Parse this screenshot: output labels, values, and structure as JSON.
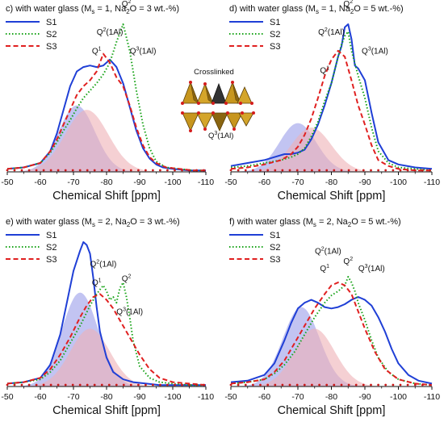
{
  "colors": {
    "S1": "#1f3fd6",
    "S2": "#17a317",
    "S3": "#e02020",
    "dot": "#cc1b1b",
    "fill_blue": "#aeb0ee",
    "fill_pink": "#efb0b6",
    "fill_overlap": "#a08a9c"
  },
  "crystal_labels": {
    "title": "Crosslinked",
    "q3": "Q3(1Al)"
  },
  "chart_data": [
    {
      "id": "c",
      "type": "line",
      "title": "c) with water glass (Ms = 1, Na2O = 3 wt.-%)",
      "title_parts": {
        "pre": "c) with water glass (M",
        "sub1": "s",
        "mid": " = 1, Na",
        "sub2": "2",
        "post": "O = 3 wt.-%)"
      },
      "xlabel": "Chemical Shift [ppm]",
      "xlim": [
        -50,
        -110
      ],
      "xticks": [
        "-50",
        "-60",
        "-70",
        "-80",
        "-90",
        "-100",
        "-110"
      ],
      "legend": [
        "S1",
        "S2",
        "S3"
      ],
      "legend_position": "top-left",
      "annotations": [
        {
          "sup": "1",
          "tail": "",
          "x": -77,
          "y": 0.8
        },
        {
          "sup": "2",
          "tail": "(1Al)",
          "x": -81,
          "y": 0.93
        },
        {
          "sup": "2",
          "tail": "",
          "x": -86,
          "y": 1.12
        },
        {
          "sup": "3",
          "tail": "(1Al)",
          "x": -91,
          "y": 0.8
        }
      ],
      "series": [
        {
          "name": "S1",
          "x": [
            -50,
            -55,
            -60,
            -63,
            -65,
            -67,
            -69,
            -71,
            -73,
            -75,
            -77,
            -79,
            -81,
            -83,
            -85,
            -87,
            -89,
            -91,
            -93,
            -95,
            -97,
            -100,
            -105,
            -110
          ],
          "y": [
            0.02,
            0.03,
            0.06,
            0.14,
            0.26,
            0.42,
            0.58,
            0.68,
            0.71,
            0.72,
            0.71,
            0.72,
            0.76,
            0.71,
            0.6,
            0.44,
            0.28,
            0.16,
            0.09,
            0.05,
            0.03,
            0.02,
            0.01,
            0.01
          ]
        },
        {
          "name": "S2",
          "x": [
            -50,
            -55,
            -60,
            -63,
            -65,
            -67,
            -69,
            -71,
            -73,
            -75,
            -77,
            -79,
            -81,
            -83,
            -85,
            -87,
            -89,
            -91,
            -93,
            -95,
            -98,
            -102,
            -106,
            -110
          ],
          "y": [
            0.02,
            0.03,
            0.06,
            0.13,
            0.2,
            0.28,
            0.35,
            0.43,
            0.5,
            0.55,
            0.6,
            0.66,
            0.74,
            0.88,
            1.0,
            0.82,
            0.55,
            0.32,
            0.16,
            0.07,
            0.03,
            0.02,
            0.01,
            0.01
          ]
        },
        {
          "name": "S3",
          "x": [
            -50,
            -55,
            -60,
            -63,
            -65,
            -67,
            -69,
            -71,
            -73,
            -75,
            -77,
            -79,
            -81,
            -83,
            -85,
            -87,
            -89,
            -91,
            -93,
            -95,
            -98,
            -102,
            -106,
            -110
          ],
          "y": [
            0.02,
            0.03,
            0.06,
            0.14,
            0.22,
            0.32,
            0.42,
            0.52,
            0.58,
            0.62,
            0.68,
            0.8,
            0.74,
            0.64,
            0.58,
            0.45,
            0.3,
            0.18,
            0.1,
            0.06,
            0.03,
            0.02,
            0.01,
            0.01
          ]
        },
        {
          "name": "fill_blue",
          "peak": -71,
          "width": 5.5,
          "height": 0.45
        },
        {
          "name": "fill_pink",
          "peak": -74,
          "width": 6.5,
          "height": 0.42
        }
      ]
    },
    {
      "id": "d",
      "type": "line",
      "title": "d) with water glass (Ms = 1, Na2O = 5 wt.-%)",
      "title_parts": {
        "pre": "d) with water glass (M",
        "sub1": "s",
        "mid": " = 1, Na",
        "sub2": "2",
        "post": "O = 5 wt.-%)"
      },
      "xlabel": "Chemical Shift [ppm]",
      "xlim": [
        -50,
        -110
      ],
      "xticks": [
        "-50",
        "-60",
        "-70",
        "-80",
        "-90",
        "-100",
        "-110"
      ],
      "legend": [
        "S1",
        "S2",
        "S3"
      ],
      "legend_position": "top-left",
      "annotations": [
        {
          "sup": "2",
          "tail": "(1Al)",
          "x": -80,
          "y": 0.93
        },
        {
          "sup": "2",
          "tail": "",
          "x": -85,
          "y": 1.12
        },
        {
          "sup": "1",
          "tail": "",
          "x": -78,
          "y": 0.67
        },
        {
          "sup": "3",
          "tail": "(1Al)",
          "x": -93,
          "y": 0.8
        }
      ],
      "series": [
        {
          "name": "S1",
          "x": [
            -50,
            -55,
            -60,
            -63,
            -66,
            -68,
            -70,
            -72,
            -74,
            -76,
            -78,
            -80,
            -82,
            -83,
            -84,
            -85,
            -86,
            -87,
            -88,
            -90,
            -92,
            -94,
            -97,
            -100,
            -105,
            -110
          ],
          "y": [
            0.04,
            0.06,
            0.08,
            0.1,
            0.12,
            0.12,
            0.13,
            0.15,
            0.22,
            0.32,
            0.45,
            0.6,
            0.78,
            0.85,
            0.98,
            1.0,
            0.9,
            0.72,
            0.7,
            0.62,
            0.4,
            0.2,
            0.08,
            0.05,
            0.03,
            0.02
          ]
        },
        {
          "name": "S2",
          "x": [
            -50,
            -55,
            -60,
            -65,
            -68,
            -70,
            -72,
            -74,
            -76,
            -78,
            -80,
            -82,
            -83,
            -84,
            -85,
            -86,
            -88,
            -90,
            -92,
            -94,
            -97,
            -100,
            -105,
            -110
          ],
          "y": [
            0.03,
            0.04,
            0.06,
            0.08,
            0.1,
            0.12,
            0.16,
            0.24,
            0.34,
            0.48,
            0.6,
            0.78,
            0.86,
            0.92,
            0.95,
            0.82,
            0.65,
            0.5,
            0.3,
            0.14,
            0.06,
            0.03,
            0.02,
            0.01
          ]
        },
        {
          "name": "S3",
          "x": [
            -50,
            -55,
            -60,
            -65,
            -68,
            -70,
            -72,
            -74,
            -76,
            -78,
            -80,
            -82,
            -84,
            -86,
            -88,
            -90,
            -92,
            -94,
            -97,
            -100,
            -105,
            -110
          ],
          "y": [
            0.02,
            0.03,
            0.05,
            0.08,
            0.12,
            0.17,
            0.25,
            0.36,
            0.5,
            0.65,
            0.76,
            0.82,
            0.78,
            0.62,
            0.45,
            0.32,
            0.18,
            0.08,
            0.04,
            0.02,
            0.01,
            0.01
          ]
        },
        {
          "name": "fill_blue",
          "peak": -70,
          "width": 5.5,
          "height": 0.33
        },
        {
          "name": "fill_pink",
          "peak": -74,
          "width": 6.0,
          "height": 0.3
        }
      ]
    },
    {
      "id": "e",
      "type": "line",
      "title": "e) with water glass (Ms = 2, Na2O = 3 wt.-%)",
      "title_parts": {
        "pre": "e) with water glass (M",
        "sub1": "s",
        "mid": " = 2, Na",
        "sub2": "2",
        "post": "O = 3 wt.-%)"
      },
      "xlabel": "Chemical Shift [ppm]",
      "xlim": [
        -50,
        -110
      ],
      "xticks": [
        "-50",
        "-60",
        "-70",
        "-80",
        "-90",
        "-100",
        "-110"
      ],
      "legend": [
        "S1",
        "S2",
        "S3"
      ],
      "legend_position": "top-left",
      "annotations": [
        {
          "sup": "2",
          "tail": "(1Al)",
          "x": -79,
          "y": 0.83
        },
        {
          "sup": "1",
          "tail": "",
          "x": -77,
          "y": 0.7
        },
        {
          "sup": "2",
          "tail": "",
          "x": -86,
          "y": 0.73
        },
        {
          "sup": "3",
          "tail": "(1Al)",
          "x": -87,
          "y": 0.5
        }
      ],
      "series": [
        {
          "name": "S1",
          "x": [
            -50,
            -55,
            -60,
            -63,
            -66,
            -68,
            -70,
            -72,
            -73,
            -74,
            -75,
            -76,
            -77,
            -78,
            -80,
            -82,
            -85,
            -88,
            -92,
            -96,
            -100,
            -105,
            -110
          ],
          "y": [
            0.02,
            0.03,
            0.06,
            0.15,
            0.36,
            0.58,
            0.8,
            0.94,
            1.0,
            0.98,
            0.92,
            0.75,
            0.55,
            0.38,
            0.2,
            0.1,
            0.05,
            0.03,
            0.02,
            0.01,
            0.01,
            0.01,
            0.01
          ]
        },
        {
          "name": "S2",
          "x": [
            -50,
            -55,
            -60,
            -63,
            -66,
            -69,
            -72,
            -75,
            -77,
            -79,
            -80,
            -81,
            -82,
            -83,
            -84,
            -85,
            -86,
            -87,
            -88,
            -90,
            -93,
            -96,
            -100,
            -105,
            -110
          ],
          "y": [
            0.02,
            0.03,
            0.05,
            0.1,
            0.18,
            0.3,
            0.42,
            0.56,
            0.64,
            0.7,
            0.66,
            0.6,
            0.62,
            0.58,
            0.68,
            0.72,
            0.62,
            0.48,
            0.32,
            0.14,
            0.06,
            0.03,
            0.02,
            0.01,
            0.01
          ]
        },
        {
          "name": "S3",
          "x": [
            -50,
            -55,
            -60,
            -63,
            -66,
            -69,
            -72,
            -74,
            -76,
            -78,
            -80,
            -82,
            -84,
            -86,
            -88,
            -90,
            -93,
            -96,
            -100,
            -105,
            -110
          ],
          "y": [
            0.02,
            0.03,
            0.06,
            0.12,
            0.22,
            0.34,
            0.48,
            0.56,
            0.62,
            0.64,
            0.6,
            0.54,
            0.46,
            0.38,
            0.3,
            0.22,
            0.12,
            0.06,
            0.03,
            0.02,
            0.01
          ]
        },
        {
          "name": "fill_blue",
          "peak": -72,
          "width": 5.5,
          "height": 0.65
        },
        {
          "name": "fill_pink",
          "peak": -75,
          "width": 6.0,
          "height": 0.4
        }
      ]
    },
    {
      "id": "f",
      "type": "line",
      "title": "f) with water glass (Ms = 2, Na2O = 5 wt.-%)",
      "title_parts": {
        "pre": "f) with water glass (M",
        "sub1": "s",
        "mid": " = 2, Na",
        "sub2": "2",
        "post": "O = 5 wt.-%)"
      },
      "xlabel": "Chemical Shift [ppm]",
      "xlim": [
        -50,
        -110
      ],
      "xticks": [
        "-50",
        "-60",
        "-70",
        "-80",
        "-90",
        "-100",
        "-110"
      ],
      "legend": [
        "S1",
        "S2",
        "S3"
      ],
      "legend_position": "top-left",
      "annotations": [
        {
          "sup": "2",
          "tail": "(1Al)",
          "x": -79,
          "y": 0.92
        },
        {
          "sup": "1",
          "tail": "",
          "x": -78,
          "y": 0.8
        },
        {
          "sup": "2",
          "tail": "",
          "x": -85,
          "y": 0.85
        },
        {
          "sup": "3",
          "tail": "(1Al)",
          "x": -92,
          "y": 0.8
        }
      ],
      "series": [
        {
          "name": "S1",
          "x": [
            -50,
            -55,
            -60,
            -63,
            -66,
            -68,
            -70,
            -72,
            -74,
            -76,
            -78,
            -80,
            -82,
            -84,
            -86,
            -88,
            -90,
            -92,
            -94,
            -96,
            -98,
            -100,
            -103,
            -106,
            -110
          ],
          "y": [
            0.03,
            0.04,
            0.08,
            0.16,
            0.32,
            0.44,
            0.54,
            0.58,
            0.6,
            0.58,
            0.55,
            0.54,
            0.55,
            0.57,
            0.6,
            0.62,
            0.6,
            0.56,
            0.48,
            0.38,
            0.26,
            0.16,
            0.08,
            0.04,
            0.02
          ]
        },
        {
          "name": "S2",
          "x": [
            -50,
            -55,
            -60,
            -63,
            -66,
            -69,
            -72,
            -75,
            -78,
            -80,
            -82,
            -84,
            -85,
            -86,
            -87,
            -88,
            -90,
            -92,
            -94,
            -97,
            -100,
            -105,
            -110
          ],
          "y": [
            0.02,
            0.03,
            0.05,
            0.09,
            0.15,
            0.24,
            0.36,
            0.48,
            0.58,
            0.63,
            0.66,
            0.7,
            0.76,
            0.72,
            0.66,
            0.58,
            0.46,
            0.32,
            0.2,
            0.1,
            0.05,
            0.02,
            0.01
          ]
        },
        {
          "name": "S3",
          "x": [
            -50,
            -55,
            -60,
            -63,
            -66,
            -69,
            -72,
            -75,
            -78,
            -80,
            -82,
            -84,
            -86,
            -88,
            -90,
            -93,
            -96,
            -100,
            -105,
            -110
          ],
          "y": [
            0.02,
            0.03,
            0.05,
            0.1,
            0.18,
            0.3,
            0.42,
            0.54,
            0.64,
            0.7,
            0.72,
            0.7,
            0.64,
            0.52,
            0.4,
            0.24,
            0.12,
            0.05,
            0.02,
            0.01
          ]
        },
        {
          "name": "fill_blue",
          "peak": -71,
          "width": 5.5,
          "height": 0.55
        },
        {
          "name": "fill_pink",
          "peak": -75,
          "width": 6.0,
          "height": 0.4
        }
      ]
    }
  ]
}
